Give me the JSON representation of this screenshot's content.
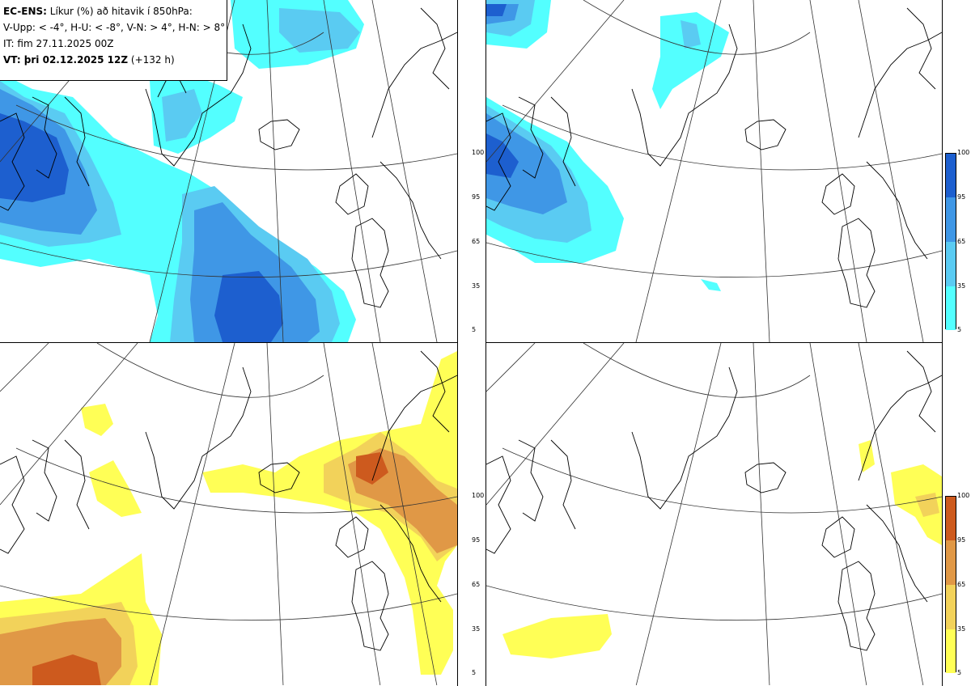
{
  "legend": {
    "model": "EC-ENS:",
    "title_rest": "Líkur (%) að hitavik í 850hPa:",
    "classes": "V-Upp: < -4°, H-U: < -8°, V-N: > 4°, H-N: > 8°",
    "init_time": "IT: fim 27.11.2025 00Z",
    "valid_label": "VT: þri 02.12.2025 12Z",
    "lead": "(+132 h)"
  },
  "colorbar": {
    "ticks": [
      "100",
      "95",
      "65",
      "35",
      "5"
    ],
    "cold_colors": [
      "#53FFFF",
      "#5ACBF2",
      "#3F97E6",
      "#1D5FCF"
    ],
    "warm_colors": [
      "#FFFF56",
      "#F2D25A",
      "#E09846",
      "#CD5A1E"
    ]
  },
  "panels": [
    {
      "name": "V-Upp",
      "threshold": "< -4°",
      "anomaly": "cold"
    },
    {
      "name": "H-U",
      "threshold": "< -8°",
      "anomaly": "cold"
    },
    {
      "name": "V-N",
      "threshold": "> 4°",
      "anomaly": "warm"
    },
    {
      "name": "H-N",
      "threshold": "> 8°",
      "anomaly": "warm"
    }
  ]
}
